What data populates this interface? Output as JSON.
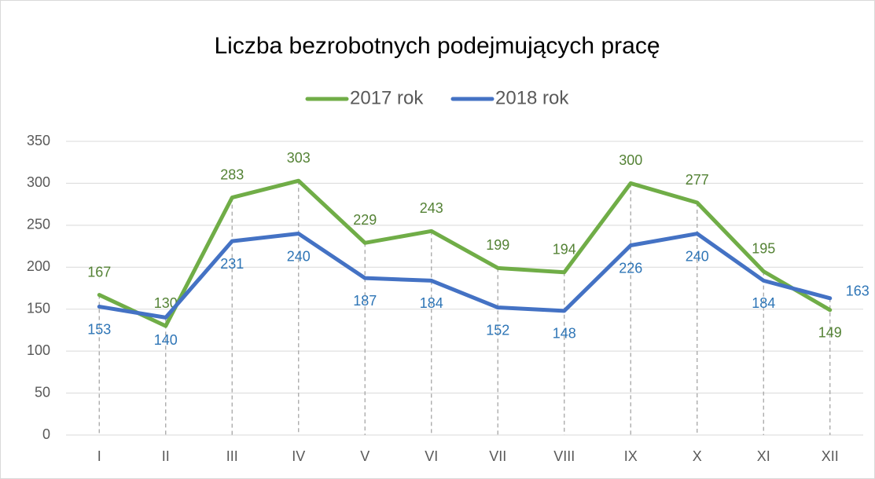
{
  "chart_data": {
    "type": "line",
    "title": "Liczba bezrobotnych podejmujących pracę",
    "categories": [
      "I",
      "II",
      "III",
      "IV",
      "V",
      "VI",
      "VII",
      "VIII",
      "IX",
      "X",
      "XI",
      "XII"
    ],
    "series": [
      {
        "name": "2017 rok",
        "color": "#70ad47",
        "values": [
          167,
          130,
          283,
          303,
          229,
          243,
          199,
          194,
          300,
          277,
          195,
          149
        ]
      },
      {
        "name": "2018 rok",
        "color": "#4472c4",
        "values": [
          153,
          140,
          231,
          240,
          187,
          184,
          152,
          148,
          226,
          240,
          184,
          163
        ]
      }
    ],
    "ylim": [
      0,
      350
    ],
    "yticks": [
      0,
      50,
      100,
      150,
      200,
      250,
      300,
      350
    ],
    "grid": true,
    "legend": "top"
  }
}
